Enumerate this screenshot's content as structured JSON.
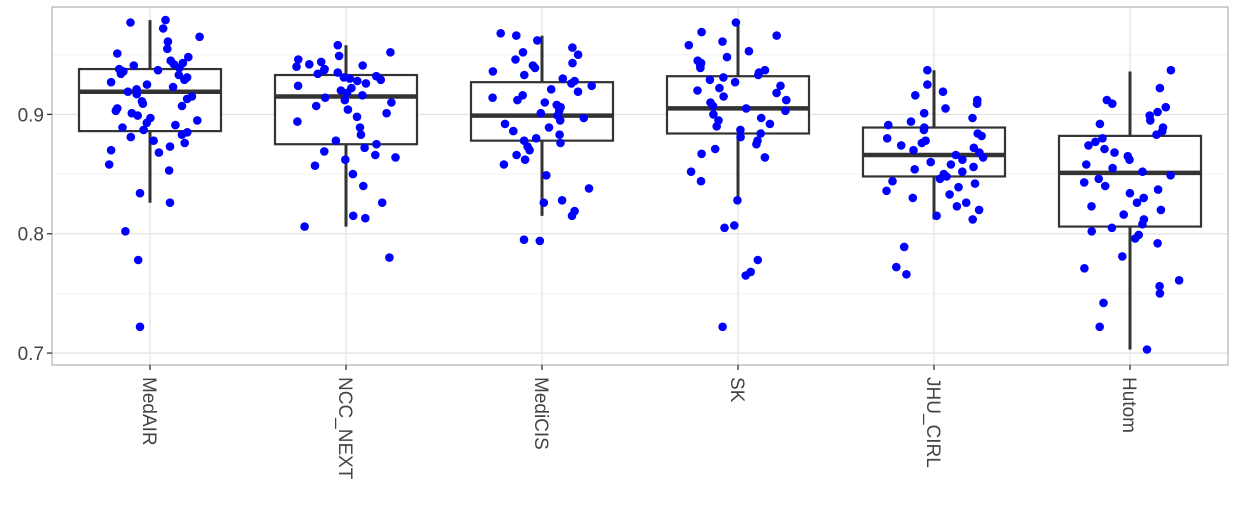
{
  "chart_data": {
    "type": "box",
    "categories": [
      "MedAIR",
      "NCC_NEXT",
      "MediCIS",
      "SK",
      "JHU_CIRL",
      "Hutom"
    ],
    "ylim": [
      0.69,
      0.99
    ],
    "y_ticks": [
      0.7,
      0.8,
      0.9
    ],
    "y_tick_labels": [
      "0.7",
      "0.8",
      "0.9"
    ],
    "grid": true,
    "point_color": "#0000ff",
    "box_color": "#333333",
    "title": "",
    "xlabel": "",
    "ylabel": "",
    "boxes": [
      {
        "name": "MedAIR",
        "whisker_low": 0.826,
        "q1": 0.886,
        "median": 0.919,
        "q3": 0.938,
        "whisker_high": 0.979
      },
      {
        "name": "NCC_NEXT",
        "whisker_low": 0.806,
        "q1": 0.875,
        "median": 0.915,
        "q3": 0.933,
        "whisker_high": 0.958
      },
      {
        "name": "MediCIS",
        "whisker_low": 0.815,
        "q1": 0.878,
        "median": 0.899,
        "q3": 0.927,
        "whisker_high": 0.966
      },
      {
        "name": "SK",
        "whisker_low": 0.827,
        "q1": 0.884,
        "median": 0.905,
        "q3": 0.932,
        "whisker_high": 0.977
      },
      {
        "name": "JHU_CIRL",
        "whisker_low": 0.812,
        "q1": 0.848,
        "median": 0.866,
        "q3": 0.889,
        "whisker_high": 0.937
      },
      {
        "name": "Hutom",
        "whisker_low": 0.703,
        "q1": 0.806,
        "median": 0.851,
        "q3": 0.882,
        "whisker_high": 0.936
      }
    ],
    "points": [
      {
        "name": "MedAIR",
        "values": [
          0.979,
          0.977,
          0.972,
          0.965,
          0.961,
          0.955,
          0.951,
          0.948,
          0.945,
          0.943,
          0.942,
          0.941,
          0.939,
          0.938,
          0.937,
          0.936,
          0.934,
          0.933,
          0.931,
          0.929,
          0.927,
          0.925,
          0.923,
          0.921,
          0.919,
          0.917,
          0.915,
          0.913,
          0.911,
          0.909,
          0.907,
          0.905,
          0.903,
          0.901,
          0.899,
          0.897,
          0.895,
          0.893,
          0.891,
          0.889,
          0.887,
          0.885,
          0.883,
          0.881,
          0.878,
          0.876,
          0.873,
          0.87,
          0.868,
          0.858,
          0.853,
          0.834,
          0.826,
          0.802,
          0.778,
          0.722
        ]
      },
      {
        "name": "NCC_NEXT",
        "values": [
          0.958,
          0.952,
          0.949,
          0.946,
          0.944,
          0.942,
          0.941,
          0.94,
          0.938,
          0.937,
          0.935,
          0.934,
          0.932,
          0.931,
          0.93,
          0.929,
          0.928,
          0.926,
          0.924,
          0.922,
          0.92,
          0.918,
          0.916,
          0.914,
          0.912,
          0.91,
          0.907,
          0.904,
          0.901,
          0.898,
          0.894,
          0.889,
          0.883,
          0.878,
          0.875,
          0.872,
          0.869,
          0.866,
          0.864,
          0.862,
          0.857,
          0.85,
          0.84,
          0.826,
          0.815,
          0.813,
          0.806,
          0.78
        ]
      },
      {
        "name": "MediCIS",
        "values": [
          0.968,
          0.966,
          0.962,
          0.956,
          0.952,
          0.95,
          0.946,
          0.943,
          0.941,
          0.939,
          0.936,
          0.933,
          0.93,
          0.928,
          0.926,
          0.924,
          0.921,
          0.919,
          0.916,
          0.914,
          0.912,
          0.91,
          0.908,
          0.906,
          0.903,
          0.901,
          0.899,
          0.897,
          0.895,
          0.892,
          0.889,
          0.886,
          0.883,
          0.88,
          0.878,
          0.876,
          0.873,
          0.87,
          0.866,
          0.862,
          0.858,
          0.849,
          0.838,
          0.828,
          0.826,
          0.819,
          0.815,
          0.795,
          0.794
        ]
      },
      {
        "name": "SK",
        "values": [
          0.977,
          0.969,
          0.966,
          0.961,
          0.958,
          0.953,
          0.948,
          0.945,
          0.943,
          0.941,
          0.939,
          0.937,
          0.935,
          0.933,
          0.931,
          0.929,
          0.927,
          0.924,
          0.922,
          0.92,
          0.918,
          0.915,
          0.912,
          0.91,
          0.907,
          0.905,
          0.903,
          0.9,
          0.897,
          0.895,
          0.892,
          0.89,
          0.887,
          0.884,
          0.881,
          0.878,
          0.875,
          0.871,
          0.867,
          0.864,
          0.852,
          0.844,
          0.828,
          0.807,
          0.805,
          0.778,
          0.768,
          0.765,
          0.722
        ]
      },
      {
        "name": "JHU_CIRL",
        "values": [
          0.937,
          0.925,
          0.919,
          0.916,
          0.912,
          0.909,
          0.905,
          0.901,
          0.897,
          0.894,
          0.891,
          0.889,
          0.887,
          0.884,
          0.882,
          0.88,
          0.878,
          0.876,
          0.874,
          0.872,
          0.87,
          0.868,
          0.866,
          0.864,
          0.862,
          0.86,
          0.858,
          0.856,
          0.854,
          0.852,
          0.85,
          0.848,
          0.846,
          0.844,
          0.842,
          0.839,
          0.836,
          0.833,
          0.83,
          0.826,
          0.823,
          0.82,
          0.815,
          0.812,
          0.789,
          0.772,
          0.766
        ]
      },
      {
        "name": "Hutom",
        "values": [
          0.937,
          0.922,
          0.912,
          0.909,
          0.906,
          0.902,
          0.899,
          0.895,
          0.892,
          0.889,
          0.886,
          0.883,
          0.88,
          0.877,
          0.874,
          0.871,
          0.868,
          0.865,
          0.862,
          0.858,
          0.855,
          0.852,
          0.849,
          0.846,
          0.843,
          0.84,
          0.837,
          0.834,
          0.83,
          0.826,
          0.823,
          0.82,
          0.816,
          0.812,
          0.808,
          0.805,
          0.802,
          0.799,
          0.796,
          0.792,
          0.781,
          0.771,
          0.761,
          0.756,
          0.75,
          0.742,
          0.722,
          0.703
        ]
      }
    ]
  }
}
